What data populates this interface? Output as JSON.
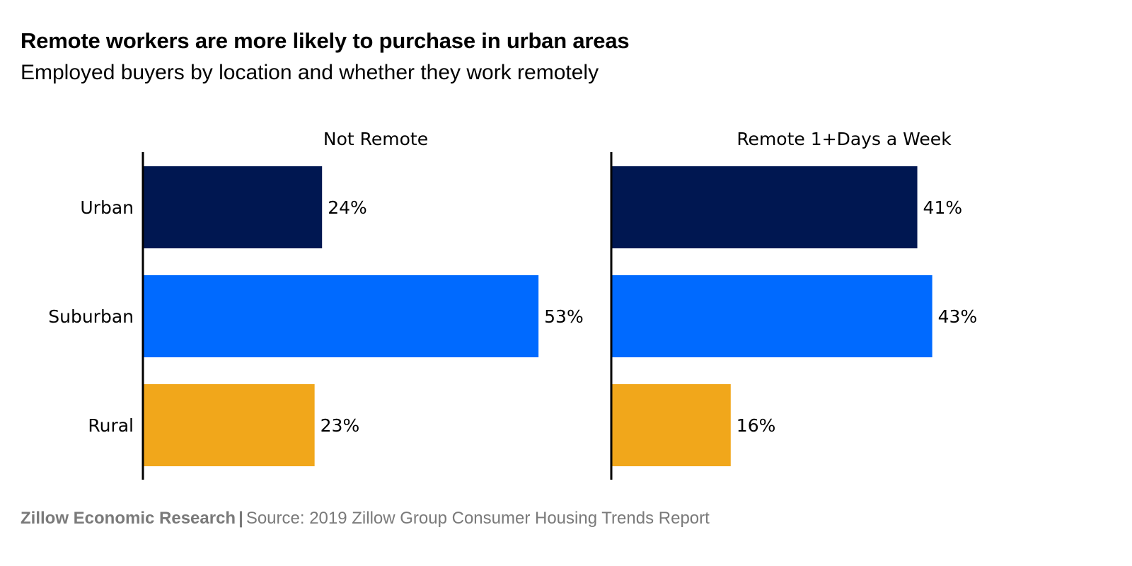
{
  "header": {
    "title": "Remote workers are more likely to purchase in urban areas",
    "subtitle": "Employed buyers by location and whether they work remotely"
  },
  "footer": {
    "organization": "Zillow Economic Research",
    "separator": "|",
    "source": "Source: 2019 Zillow Group Consumer Housing Trends Report"
  },
  "colors": {
    "Urban": "#001751",
    "Suburban": "#006aff",
    "Rural": "#f1a71b",
    "axis": "#000000",
    "text": "#000000"
  },
  "chart_data": [
    {
      "type": "bar",
      "orientation": "horizontal",
      "title": "Not Remote",
      "categories": [
        "Urban",
        "Suburban",
        "Rural"
      ],
      "values": [
        24,
        53,
        23
      ],
      "value_labels": [
        "24%",
        "53%",
        "23%"
      ],
      "unit": "%",
      "xlim": [
        0,
        60
      ],
      "grid": false,
      "legend": "none"
    },
    {
      "type": "bar",
      "orientation": "horizontal",
      "title": "Remote 1+Days a Week",
      "categories": [
        "Urban",
        "Suburban",
        "Rural"
      ],
      "values": [
        41,
        43,
        16
      ],
      "value_labels": [
        "41%",
        "43%",
        "16%"
      ],
      "unit": "%",
      "xlim": [
        0,
        60
      ],
      "grid": false,
      "legend": "none"
    }
  ]
}
